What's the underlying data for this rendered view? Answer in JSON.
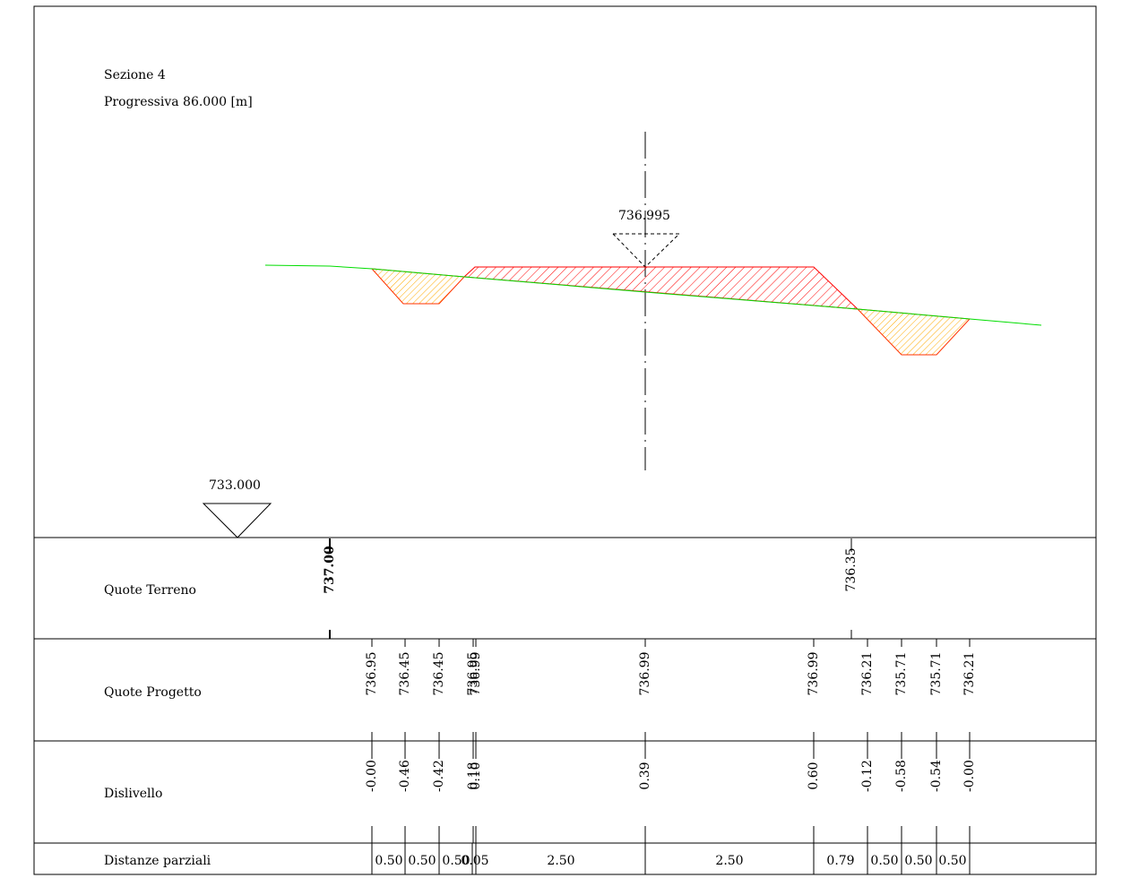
{
  "section": {
    "title": "Sezione 4",
    "progressiva": "Progressiva 86.000 [m]"
  },
  "reference": {
    "datum_label": "733.000",
    "axis_label": "736.995"
  },
  "colors": {
    "terrain_line": "#00dd00",
    "fill_hatch": "#ff0000",
    "cut_hatch": "#ffaa00"
  },
  "table": {
    "rows": [
      {
        "label": "Quote Terreno"
      },
      {
        "label": "Quote Progetto"
      },
      {
        "label": "Dislivello"
      },
      {
        "label": "Distanze parziali"
      }
    ]
  },
  "quote_terreno": [
    {
      "value": "737.00",
      "bold": true
    },
    {
      "value": "736.35",
      "bold": false
    }
  ],
  "quote_progetto": [
    "736.95",
    "736.45",
    "736.45",
    "736.95",
    "736.99",
    "736.99",
    "736.99",
    "736.21",
    "735.71",
    "735.71",
    "736.21"
  ],
  "dislivello": [
    "-0.00",
    "-0.46",
    "-0.42",
    "0.18",
    "0.10",
    "0.39",
    "0.60",
    "-0.12",
    "-0.58",
    "-0.54",
    "-0.00"
  ],
  "distanze_parziali": [
    "0.50",
    "0.50",
    "0.50",
    "0.05",
    "2.50",
    "2.50",
    "0.79",
    "0.50",
    "0.50",
    "0.50"
  ]
}
